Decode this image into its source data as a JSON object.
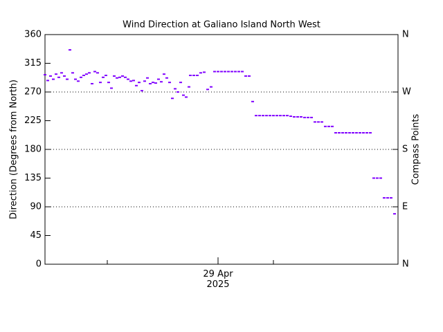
{
  "chart_data": {
    "type": "scatter",
    "title": "Wind Direction at Galiano Island North West",
    "ylabel": "Direction (Degrees from North)",
    "y2label": "Compass Points",
    "xlim": [
      0,
      51
    ],
    "xticks": [
      {
        "value": 25,
        "label": "29 Apr 2025"
      }
    ],
    "xminor_ticks": [
      9,
      33
    ],
    "ylim": [
      0,
      360
    ],
    "yticks": [
      0,
      45,
      90,
      135,
      180,
      225,
      270,
      315,
      360
    ],
    "y2lim": [
      0,
      360
    ],
    "y2ticks": [
      {
        "value": 0,
        "label": "N"
      },
      {
        "value": 90,
        "label": "E"
      },
      {
        "value": 180,
        "label": "S"
      },
      {
        "value": 270,
        "label": "W"
      },
      {
        "value": 360,
        "label": "N"
      }
    ],
    "grid_values": [
      90,
      180,
      270
    ],
    "series": [
      {
        "name": "Wind Direction",
        "color": "#8000ff",
        "x": [
          0,
          0.4,
          0.8,
          1.2,
          1.6,
          2,
          2.4,
          2.8,
          3.2,
          3.6,
          4,
          4.4,
          4.8,
          5.2,
          5.6,
          6,
          6.4,
          6.8,
          7.2,
          7.6,
          8,
          8.4,
          8.8,
          9.2,
          9.6,
          10,
          10.4,
          10.8,
          11.2,
          11.6,
          12,
          12.4,
          12.8,
          13.2,
          13.6,
          14,
          14.4,
          14.8,
          15.2,
          15.6,
          16,
          16.4,
          16.8,
          17.2,
          17.6,
          18,
          18.4,
          18.8,
          19.2,
          19.6,
          20,
          20.4,
          20.8,
          21,
          21.5,
          22,
          22.5,
          23,
          23.5,
          24,
          24.5,
          25,
          25.5,
          26,
          26.5,
          27,
          27.5,
          28,
          28.5,
          29,
          29.5,
          30,
          30.5,
          31,
          31.5,
          32,
          32.5,
          33,
          33.5,
          34,
          34.5,
          35,
          35.5,
          36,
          36.5,
          37,
          37.5,
          38,
          38.5,
          39,
          39.5,
          40,
          40.5,
          41,
          41.5,
          42,
          42.5,
          43,
          43.5,
          44,
          44.5,
          45,
          45.5,
          46,
          46.5,
          47,
          47.5,
          48,
          48.5,
          49,
          49.5,
          50,
          50.5
        ],
        "values": [
          297,
          288,
          295,
          290,
          298,
          293,
          300,
          295,
          290,
          336,
          300,
          290,
          287,
          293,
          296,
          298,
          300,
          283,
          302,
          300,
          285,
          293,
          296,
          285,
          276,
          295,
          292,
          293,
          295,
          293,
          290,
          287,
          288,
          280,
          285,
          272,
          287,
          292,
          283,
          285,
          284,
          290,
          286,
          298,
          292,
          285,
          260,
          275,
          270,
          285,
          265,
          262,
          278,
          296,
          296,
          296,
          300,
          301,
          274,
          278,
          302,
          302,
          302,
          302,
          302,
          302,
          302,
          302,
          302,
          295,
          295,
          255,
          233,
          233,
          233,
          233,
          233,
          233,
          233,
          233,
          233,
          233,
          232,
          231,
          231,
          231,
          230,
          230,
          230,
          223,
          223,
          223,
          216,
          216,
          216,
          206,
          206,
          206,
          206,
          206,
          206,
          206,
          206,
          206,
          206,
          206,
          135,
          135,
          135,
          104,
          104,
          104,
          79
        ]
      }
    ]
  }
}
